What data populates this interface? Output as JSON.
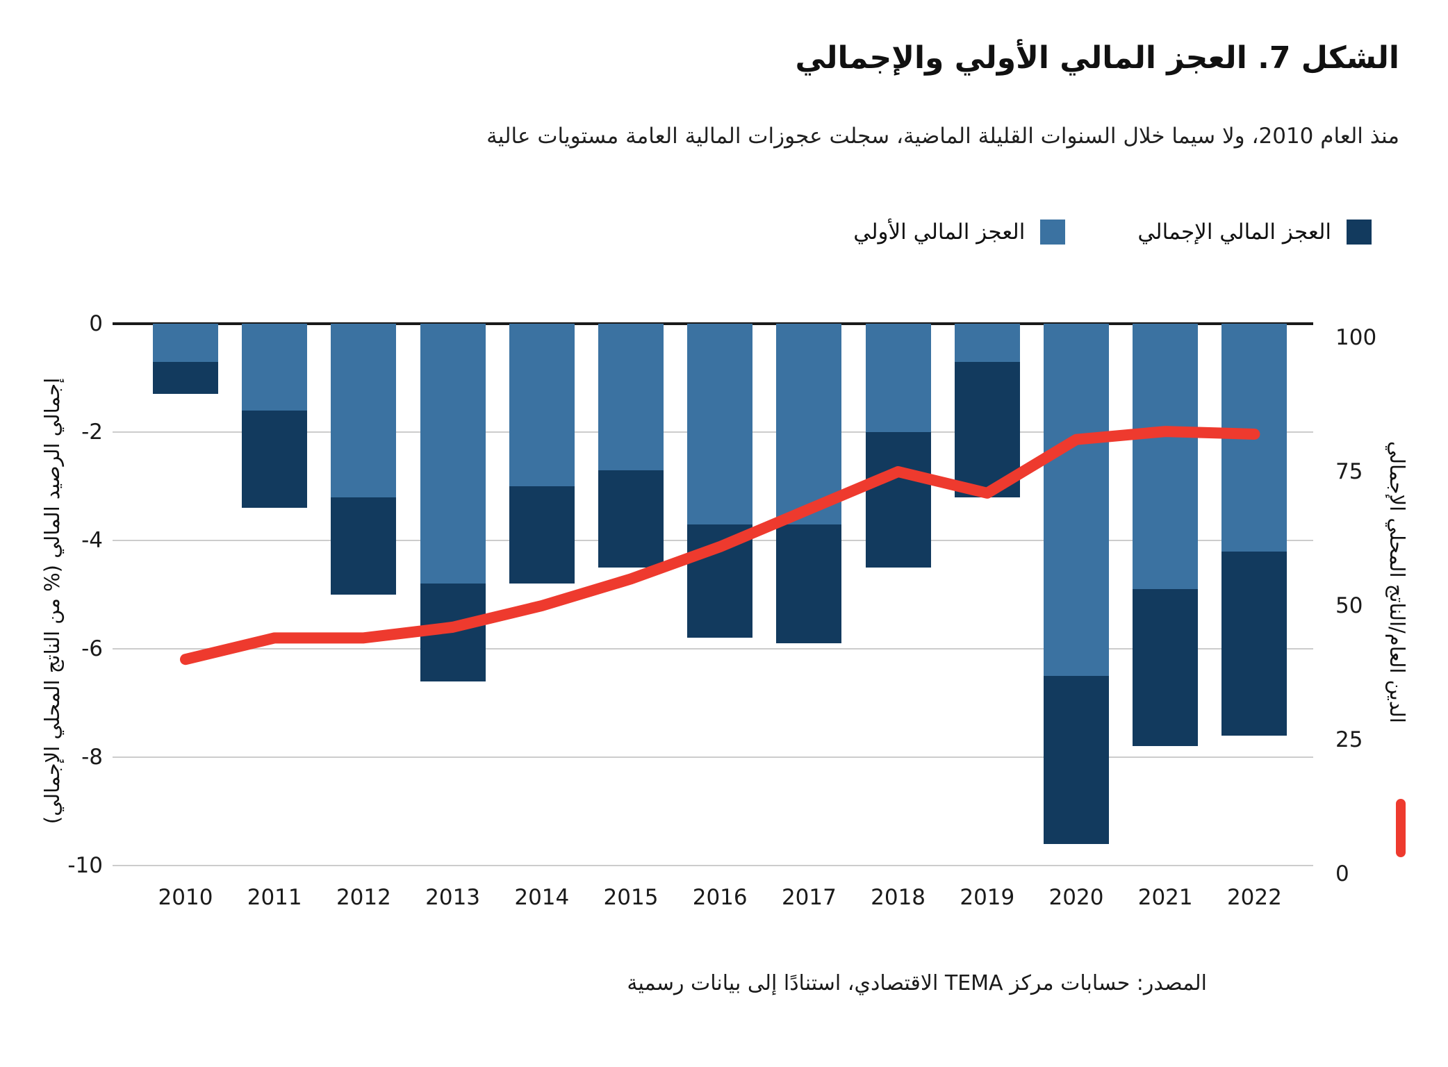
{
  "title": "الشكل 7. العجز المالي الأولي والإجمالي",
  "subtitle": "منذ العام 2010، ولا سيما خلال السنوات القليلة الماضية، سجلت عجوزات المالية العامة مستويات عالية",
  "source": "المصدر: حسابات مركز TEMA الاقتصادي، استنادًا إلى بيانات رسمية",
  "colors": {
    "overall_deficit_bar": "#123a5e",
    "primary_deficit_bar": "#3b72a1",
    "debt_line": "#ee3a2e",
    "gridline": "#cccccc",
    "zero_axis": "#1a1a1a"
  },
  "legend": [
    {
      "label": "العجز المالي الإجمالي",
      "color": "#123a5e"
    },
    {
      "label": "العجز المالي الأولي",
      "color": "#3b72a1"
    }
  ],
  "chart_data": {
    "type": "bar",
    "subtype": "stacked-bars-with-dual-axis-line",
    "categories": [
      "2010",
      "2011",
      "2012",
      "2013",
      "2014",
      "2015",
      "2016",
      "2017",
      "2018",
      "2019",
      "2020",
      "2021",
      "2022"
    ],
    "series": [
      {
        "name": "العجز المالي الأولي",
        "type": "bar-segment-top",
        "axis": "left",
        "color": "#3b72a1",
        "values": [
          -0.7,
          -1.6,
          -3.2,
          -4.8,
          -3.0,
          -2.7,
          -3.7,
          -3.7,
          -2.0,
          -0.7,
          -6.5,
          -4.9,
          -4.2
        ]
      },
      {
        "name": "العجز المالي الإجمالي",
        "type": "bar-total",
        "axis": "left",
        "color": "#123a5e",
        "values": [
          -1.3,
          -3.4,
          -5.0,
          -6.6,
          -4.8,
          -4.5,
          -5.8,
          -5.9,
          -4.5,
          -3.2,
          -9.6,
          -7.8,
          -7.6
        ]
      },
      {
        "name": "الدين العام/الناتج المحلي الإجمالي",
        "type": "line",
        "axis": "right",
        "color": "#ee3a2e",
        "values": [
          40,
          44,
          44,
          46,
          50,
          55,
          61,
          68,
          75,
          71,
          81,
          82.5,
          82
        ]
      }
    ],
    "left_axis": {
      "title": "إجمالي الرصيد المالي (% من الناتج المحلي الإجمالي)",
      "ticks": [
        0,
        -2,
        -4,
        -6,
        -8,
        -10
      ],
      "range": [
        0,
        -10
      ]
    },
    "right_axis": {
      "title": "الدين العام/الناتج المحلي الإجمالي",
      "ticks": [
        100,
        75,
        50,
        25,
        0
      ],
      "range": [
        0,
        100
      ]
    },
    "grid": "horizontal",
    "legend_position": "top-right"
  }
}
